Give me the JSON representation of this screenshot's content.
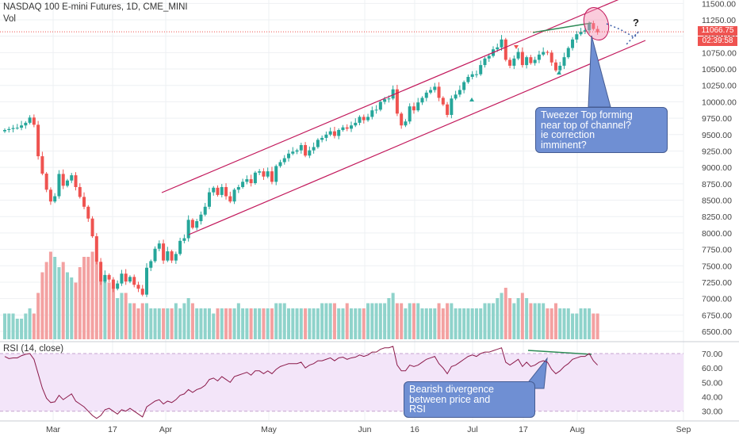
{
  "header": {
    "title": "NASDAQ 100 E-mini Futures, 1D, CME_MINI",
    "volume_label": "Vol",
    "rsi_label": "RSI (14, close)"
  },
  "price_badge": {
    "price": "11066.75",
    "countdown": "02:39:58",
    "color": "#ef5350"
  },
  "colors": {
    "up": "#26a69a",
    "down": "#ef5350",
    "vol_up": "#8fd3cb",
    "vol_down": "#f3a1a1",
    "channel": "#c2185b",
    "divergence": "#2e8b57",
    "rsi_line": "#8b1a4a",
    "rsi_band": "#f3e5f9",
    "rsi_level": "#c6a4cf",
    "callout": "#6f8fd3",
    "tweezer_ellipse": "#f48fb1"
  },
  "annotations": {
    "tweezer": [
      "Tweezer Top forming",
      "near top of channel?",
      "ie correction",
      "imminent?"
    ],
    "divergence": [
      "Bearish divergence",
      "between price and",
      "RSI"
    ],
    "question": "?"
  },
  "chart_data": [
    {
      "type": "candlestick",
      "title": "NASDAQ 100 E-mini Futures, 1D, CME_MINI",
      "x_tick_labels": [
        "Mar",
        "17",
        "Apr",
        "May",
        "Jun",
        "16",
        "Jul",
        "17",
        "Aug",
        "Sep"
      ],
      "y_ticks": [
        6500,
        6750,
        7000,
        7250,
        7500,
        7750,
        8000,
        8250,
        8500,
        8750,
        9000,
        9250,
        9500,
        9750,
        10000,
        10250,
        10500,
        10750,
        11000,
        11250,
        11500
      ],
      "y_tick_labels": [
        "6500.00",
        "6750.00",
        "7000.00",
        "7250.00",
        "7500.00",
        "7750.00",
        "8000.00",
        "8250.00",
        "8500.00",
        "8750.00",
        "9000.00",
        "9250.00",
        "9500.00",
        "9750.00",
        "10000.00",
        "10250.00",
        "10500.00",
        "10750.00",
        "11000.00",
        "11250.00",
        "11500.00"
      ],
      "ylim": [
        6360,
        11640
      ],
      "series": [
        {
          "close": [
            9570,
            9585,
            9600,
            9605,
            9640,
            9680,
            9760,
            9650,
            9170,
            8905,
            8660,
            8480,
            8560,
            8900,
            8720,
            8800,
            8880,
            8700,
            8550,
            8400,
            8220,
            7950,
            7560,
            7260,
            7360,
            7290,
            7150,
            7230,
            7380,
            7260,
            7330,
            7210,
            7150,
            7060,
            7470,
            7570,
            7760,
            7840,
            7580,
            7720,
            7580,
            7680,
            7880,
            7920,
            8200,
            8080,
            8180,
            8280,
            8400,
            8620,
            8690,
            8580,
            8700,
            8560,
            8480,
            8660,
            8700,
            8780,
            8820,
            8760,
            8920,
            8940,
            8860,
            8940,
            8780,
            9020,
            9080,
            9140,
            9210,
            9240,
            9260,
            9340,
            9180,
            9260,
            9310,
            9420,
            9450,
            9500,
            9550,
            9480,
            9570,
            9610,
            9590,
            9640,
            9680,
            9770,
            9720,
            9770,
            9870,
            9880,
            10000,
            10040,
            10050,
            10190,
            9820,
            9640,
            9700,
            9930,
            9870,
            9990,
            10060,
            10140,
            10180,
            10230,
            10060,
            9960,
            9800,
            10050,
            10110,
            10180,
            10300,
            10380,
            10420,
            10420,
            10560,
            10660,
            10700,
            10800,
            10830,
            10950,
            10640,
            10550,
            10660,
            10760,
            10560,
            10680,
            10590,
            10640,
            10720,
            10760,
            10750,
            10600,
            10480,
            10550,
            10680,
            10820,
            10950,
            11030,
            11070,
            11090,
            11200,
            11110,
            11060
          ],
          "volume_scale": [
            5,
            5,
            5,
            4,
            4,
            5,
            6,
            5,
            9,
            13,
            15,
            17,
            16,
            14,
            15,
            13,
            12,
            11,
            14,
            16,
            16,
            17,
            15,
            13,
            12,
            11,
            10,
            8,
            9,
            9,
            7,
            7,
            6,
            7,
            7,
            6,
            6,
            6,
            6,
            6,
            6,
            7,
            6,
            7,
            8,
            7,
            6,
            6,
            6,
            6,
            5,
            6,
            6,
            6,
            6,
            6,
            7,
            6,
            6,
            6,
            6,
            6,
            6,
            6,
            6,
            7,
            7,
            7,
            6,
            6,
            6,
            6,
            6,
            6,
            6,
            6,
            7,
            7,
            7,
            7,
            6,
            6,
            7,
            6,
            6,
            6,
            6,
            7,
            7,
            7,
            7,
            7,
            8,
            9,
            7,
            7,
            6,
            7,
            7,
            7,
            6,
            6,
            6,
            6,
            7,
            6,
            7,
            7,
            6,
            6,
            6,
            6,
            6,
            6,
            6,
            7,
            7,
            7,
            8,
            9,
            10,
            8,
            7,
            8,
            9,
            8,
            7,
            7,
            7,
            7,
            6,
            6,
            7,
            6,
            6,
            6,
            5,
            5,
            6,
            6,
            6,
            5,
            5
          ]
        }
      ]
    },
    {
      "type": "line",
      "title": "RSI (14, close)",
      "y_ticks": [
        30,
        40,
        50,
        60,
        70
      ],
      "y_tick_labels": [
        "30.00",
        "40.00",
        "50.00",
        "60.00",
        "70.00"
      ],
      "ylim": [
        24,
        75
      ],
      "band": [
        30,
        70
      ],
      "series": [
        {
          "name": "RSI (14, close)",
          "values": [
            68,
            66.5,
            67,
            67,
            68.5,
            69.5,
            70,
            66,
            56,
            46,
            39,
            36,
            36.5,
            41,
            38,
            40,
            42,
            37,
            35,
            33,
            30,
            27,
            25,
            27,
            31,
            32,
            30,
            28,
            31,
            30,
            32,
            30,
            28,
            26,
            33,
            35,
            37,
            38,
            35,
            37,
            36,
            38,
            41,
            42,
            45,
            43,
            45,
            46,
            48,
            52,
            53,
            51,
            54,
            52,
            50,
            54,
            55,
            56,
            57,
            55,
            58,
            58,
            56,
            58,
            56,
            59,
            61,
            62,
            63,
            63,
            63,
            64,
            60,
            62,
            63,
            65,
            65,
            66,
            67,
            65,
            67,
            67.5,
            66,
            67,
            67.5,
            69,
            68,
            69,
            71,
            71,
            73,
            74,
            74,
            75,
            62,
            58,
            58,
            62,
            61,
            62,
            64,
            66,
            67,
            68,
            63,
            60,
            56,
            61,
            62,
            64,
            66,
            68,
            69,
            68,
            70,
            71,
            71,
            72,
            73,
            74,
            64,
            62,
            64,
            66,
            61,
            64,
            61,
            62,
            64,
            65,
            64,
            59,
            56,
            58,
            61,
            63,
            66,
            67,
            68,
            68,
            70,
            65,
            62
          ]
        }
      ]
    }
  ]
}
